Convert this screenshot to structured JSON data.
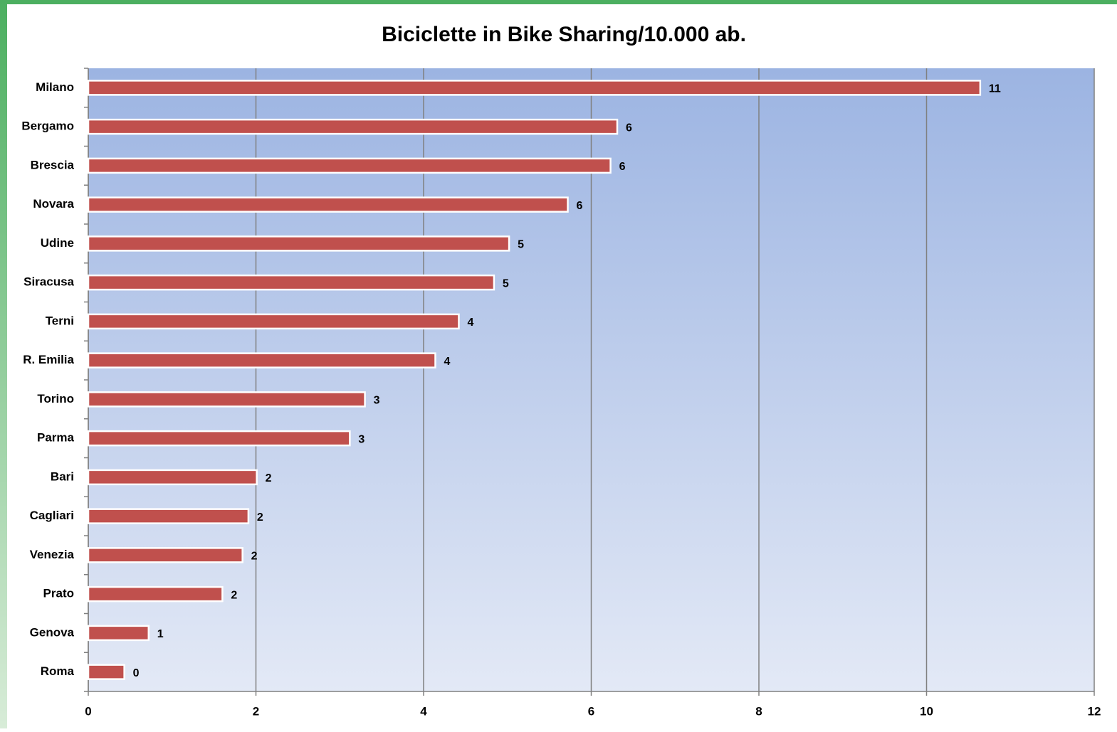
{
  "chart_data": {
    "type": "bar",
    "orientation": "horizontal",
    "title": "Biciclette in Bike Sharing/10.000 ab.",
    "categories": [
      "Milano",
      "Bergamo",
      "Brescia",
      "Novara",
      "Udine",
      "Siracusa",
      "Terni",
      "R. Emilia",
      "Torino",
      "Parma",
      "Bari",
      "Cagliari",
      "Venezia",
      "Prato",
      "Genova",
      "Roma"
    ],
    "values": [
      10.64,
      6.31,
      6.23,
      5.72,
      5.02,
      4.84,
      4.42,
      4.14,
      3.3,
      3.12,
      2.01,
      1.91,
      1.84,
      1.6,
      0.72,
      0.43
    ],
    "value_labels": [
      "11",
      "6",
      "6",
      "6",
      "5",
      "5",
      "4",
      "4",
      "3",
      "3",
      "2",
      "2",
      "2",
      "2",
      "1",
      "0"
    ],
    "color": "#c0504d",
    "xlim": [
      0,
      12
    ],
    "xticks": [
      0,
      2,
      4,
      6,
      8,
      10,
      12
    ],
    "grid": true
  }
}
